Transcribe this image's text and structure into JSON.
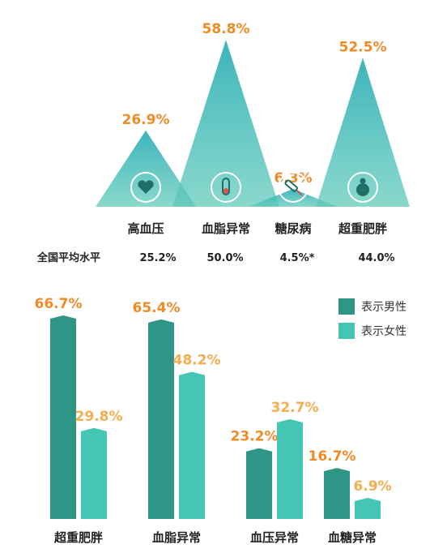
{
  "chart_data": [
    {
      "type": "area",
      "categories": [
        "高血压",
        "血脂异常",
        "糖尿病",
        "超重肥胖"
      ],
      "values": [
        26.9,
        58.8,
        6.3,
        52.5
      ],
      "value_labels": [
        "26.9%",
        "58.8%",
        "6.3%",
        "52.5%"
      ],
      "icons": [
        "heart-icon",
        "test-tube-icon",
        "syringe-icon",
        "obese-person-icon"
      ],
      "avg_label": "全国平均水平",
      "avg_values": [
        "25.2%",
        "50.0%",
        "4.5%*",
        "44.0%"
      ]
    },
    {
      "type": "bar",
      "categories": [
        "超重肥胖",
        "血脂异常",
        "血压异常",
        "血糖异常"
      ],
      "series": [
        {
          "name": "表示男性",
          "values": [
            66.7,
            65.4,
            23.2,
            16.7
          ],
          "labels": [
            "66.7%",
            "65.4%",
            "23.2%",
            "16.7%"
          ],
          "color": "#2f9587"
        },
        {
          "name": "表示女性",
          "values": [
            29.8,
            48.2,
            32.7,
            6.9
          ],
          "labels": [
            "29.8%",
            "48.2%",
            "32.7%",
            "6.9%"
          ],
          "color": "#45c5b4"
        }
      ]
    }
  ],
  "colors": {
    "male": "#2f9587",
    "female": "#45c5b4",
    "accent": "#f08a24",
    "accent_light": "#f4ad4f"
  }
}
